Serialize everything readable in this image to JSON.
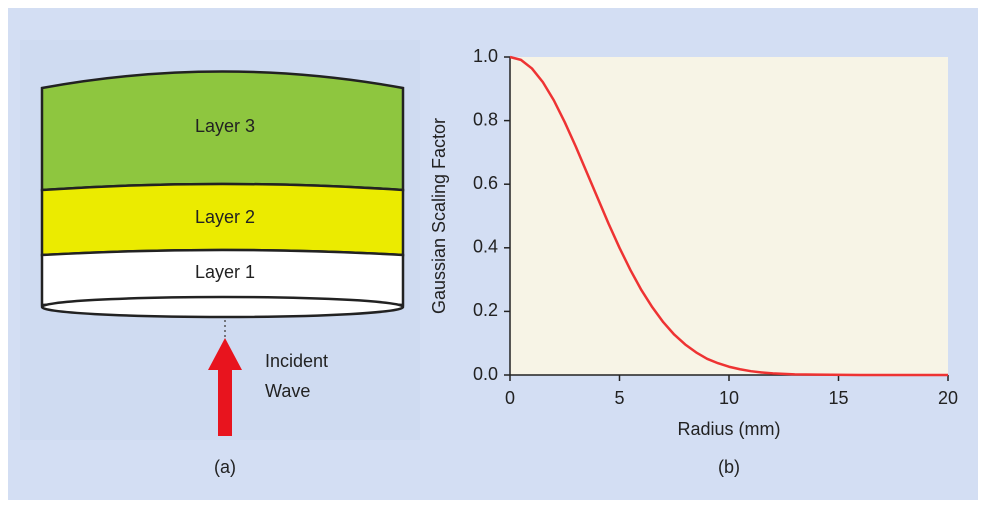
{
  "diagram": {
    "layers": [
      "Layer 3",
      "Layer 2",
      "Layer 1"
    ],
    "arrow_label": [
      "Incident",
      "Wave"
    ],
    "caption": "(a)"
  },
  "chart_data": {
    "type": "line",
    "caption": "(b)",
    "x_label": "Radius (mm)",
    "y_label": "Gaussian Scaling Factor",
    "x": [
      0,
      0.5,
      1,
      1.5,
      2,
      2.5,
      3,
      3.5,
      4,
      4.5,
      5,
      5.5,
      6,
      6.5,
      7,
      7.5,
      8,
      8.5,
      9,
      9.5,
      10,
      10.5,
      11,
      11.5,
      12,
      13,
      14,
      16,
      18,
      20
    ],
    "values": [
      1.0,
      0.991,
      0.964,
      0.921,
      0.864,
      0.795,
      0.719,
      0.638,
      0.557,
      0.476,
      0.4,
      0.33,
      0.267,
      0.213,
      0.166,
      0.127,
      0.096,
      0.071,
      0.051,
      0.037,
      0.026,
      0.018,
      0.012,
      0.008,
      0.005,
      0.002,
      0.001,
      0,
      0,
      0
    ],
    "color": "#ee3333",
    "xlim": [
      0,
      20
    ],
    "xticks": [
      0,
      5,
      10,
      15,
      20
    ],
    "ylim": [
      0,
      1
    ],
    "yticks": [
      {
        "value": 0,
        "label": "0.0"
      },
      0.2,
      0.4,
      0.6,
      0.8,
      {
        "value": 1,
        "label": "1.0"
      }
    ]
  }
}
